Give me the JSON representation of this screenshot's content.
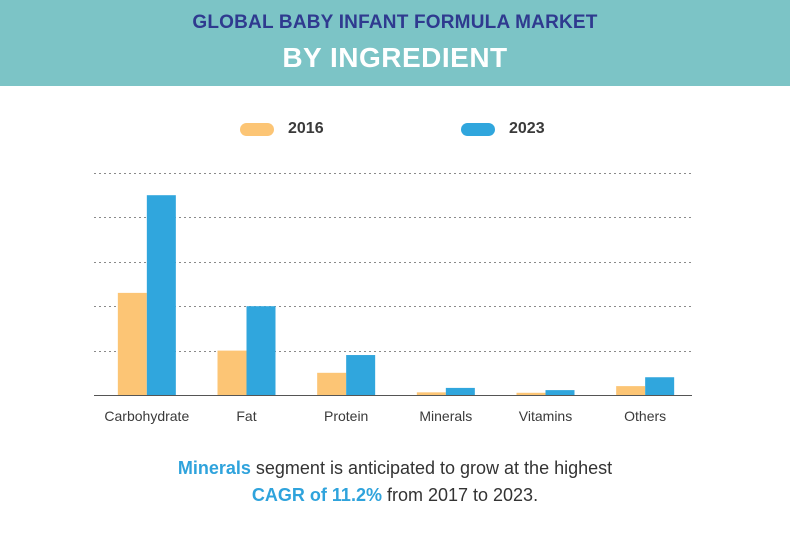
{
  "header": {
    "line1": "GLOBAL BABY INFANT FORMULA MARKET",
    "line2": "BY INGREDIENT"
  },
  "colors": {
    "header_bg": "#7cc4c6",
    "series_2016": "#fcc575",
    "series_2023": "#30a6dd",
    "highlight": "#2fa3dc"
  },
  "chart_data": {
    "type": "bar",
    "title": "",
    "xlabel": "",
    "ylabel": "",
    "ylim": [
      0,
      5
    ],
    "grid": true,
    "legend": "top",
    "categories": [
      "Carbohydrate",
      "Fat",
      "Protein",
      "Minerals",
      "Vitamins",
      "Others"
    ],
    "series": [
      {
        "name": "2016",
        "values": [
          2.3,
          1.0,
          0.5,
          0.06,
          0.05,
          0.2
        ]
      },
      {
        "name": "2023",
        "values": [
          4.5,
          2.0,
          0.9,
          0.16,
          0.11,
          0.4
        ]
      }
    ]
  },
  "footer": {
    "line1_highlight": "Minerals",
    "line1_rest": " segment is anticipated to grow at the highest",
    "line2_highlight": "CAGR of 11.2%",
    "line2_rest": " from 2017 to 2023."
  }
}
